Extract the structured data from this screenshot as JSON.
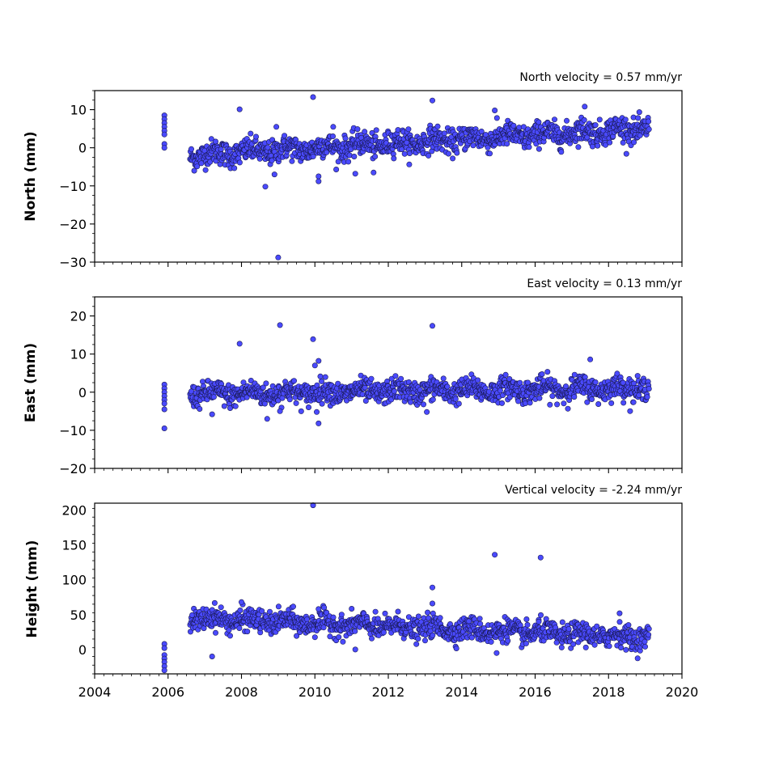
{
  "figure": {
    "background": "#ffffff",
    "marker_fill": "#4a4aff",
    "marker_edge": "#1a1a55"
  },
  "chart_data": [
    {
      "type": "scatter",
      "id": "north",
      "title": "North velocity = 0.57 mm/yr",
      "xlabel": "",
      "ylabel": "North (mm)",
      "xlim": [
        2004,
        2020
      ],
      "ylim": [
        -30,
        15
      ],
      "xticks": [
        2004,
        2006,
        2008,
        2010,
        2012,
        2014,
        2016,
        2018,
        2020
      ],
      "yticks": [
        -30,
        -20,
        -10,
        0,
        10
      ],
      "ytick_labels": [
        "−30",
        "−20",
        "−10",
        "0",
        "10"
      ],
      "show_xtick_labels": false,
      "grid": false,
      "trend": {
        "start_year": 2006.6,
        "end_year": 2019.1,
        "start_value": -2.0,
        "slope_per_year": 0.57,
        "noise": 1.6
      },
      "early_cluster": {
        "x": 2005.9,
        "values": [
          8.5,
          7.5,
          6.5,
          5.5,
          4.5,
          3.5,
          1.0,
          0.0
        ]
      },
      "outliers": [
        {
          "x": 2007.95,
          "y": 10.1
        },
        {
          "x": 2009.95,
          "y": 13.3
        },
        {
          "x": 2013.2,
          "y": 12.4
        },
        {
          "x": 2014.9,
          "y": 9.8
        },
        {
          "x": 2017.35,
          "y": 10.8
        },
        {
          "x": 2009.0,
          "y": -28.8
        },
        {
          "x": 2008.65,
          "y": -10.2
        },
        {
          "x": 2010.1,
          "y": -8.8
        },
        {
          "x": 2010.1,
          "y": -7.5
        },
        {
          "x": 2011.1,
          "y": -6.8
        },
        {
          "x": 2011.6,
          "y": -6.5
        },
        {
          "x": 2008.9,
          "y": -7.0
        },
        {
          "x": 2010.5,
          "y": 5.5
        },
        {
          "x": 2008.95,
          "y": 5.5
        }
      ]
    },
    {
      "type": "scatter",
      "id": "east",
      "title": "East velocity = 0.13 mm/yr",
      "xlabel": "",
      "ylabel": "East (mm)",
      "xlim": [
        2004,
        2020
      ],
      "ylim": [
        -20,
        25
      ],
      "xticks": [
        2004,
        2006,
        2008,
        2010,
        2012,
        2014,
        2016,
        2018,
        2020
      ],
      "yticks": [
        -20,
        -10,
        0,
        10,
        20
      ],
      "ytick_labels": [
        "−20",
        "−10",
        "0",
        "10",
        "20"
      ],
      "show_xtick_labels": false,
      "grid": false,
      "trend": {
        "start_year": 2006.6,
        "end_year": 2019.1,
        "start_value": -0.5,
        "slope_per_year": 0.13,
        "noise": 1.5
      },
      "early_cluster": {
        "x": 2005.9,
        "values": [
          2.0,
          1.0,
          0.0,
          -1.0,
          -2.0,
          -3.0,
          -4.5,
          -9.5
        ]
      },
      "outliers": [
        {
          "x": 2009.05,
          "y": 17.6
        },
        {
          "x": 2009.95,
          "y": 13.9
        },
        {
          "x": 2013.2,
          "y": 17.4
        },
        {
          "x": 2007.95,
          "y": 12.7
        },
        {
          "x": 2010.1,
          "y": 8.2
        },
        {
          "x": 2010.0,
          "y": 7.0
        },
        {
          "x": 2017.5,
          "y": 8.6
        },
        {
          "x": 2010.1,
          "y": -8.2
        },
        {
          "x": 2008.7,
          "y": -7.0
        },
        {
          "x": 2013.05,
          "y": -5.2
        },
        {
          "x": 2007.2,
          "y": -5.8
        },
        {
          "x": 2009.05,
          "y": -5.0
        },
        {
          "x": 2010.05,
          "y": -5.2
        }
      ]
    },
    {
      "type": "scatter",
      "id": "height",
      "title": "Vertical velocity = -2.24 mm/yr",
      "xlabel": "",
      "ylabel": "Height (mm)",
      "xlim": [
        2004,
        2020
      ],
      "ylim": [
        -35,
        210
      ],
      "xticks": [
        2004,
        2006,
        2008,
        2010,
        2012,
        2014,
        2016,
        2018,
        2020
      ],
      "xtick_labels": [
        "2004",
        "2006",
        "2008",
        "2010",
        "2012",
        "2014",
        "2016",
        "2018",
        "2020"
      ],
      "yticks": [
        0,
        50,
        100,
        150,
        200
      ],
      "ytick_labels": [
        "0",
        "50",
        "100",
        "150",
        "200"
      ],
      "show_xtick_labels": true,
      "grid": false,
      "trend": {
        "start_year": 2006.6,
        "end_year": 2019.1,
        "start_value": 45,
        "slope_per_year": -2.24,
        "noise": 8
      },
      "early_cluster": {
        "x": 2005.9,
        "values": [
          8,
          2,
          -8,
          -13,
          -18,
          -24,
          -30
        ]
      },
      "outliers": [
        {
          "x": 2009.95,
          "y": 207
        },
        {
          "x": 2014.9,
          "y": 136
        },
        {
          "x": 2016.15,
          "y": 132
        },
        {
          "x": 2013.2,
          "y": 89
        },
        {
          "x": 2013.2,
          "y": 66
        },
        {
          "x": 2010.1,
          "y": 58
        },
        {
          "x": 2016.1,
          "y": 40
        },
        {
          "x": 2018.3,
          "y": 52
        },
        {
          "x": 2007.2,
          "y": -10
        },
        {
          "x": 2011.1,
          "y": 0
        },
        {
          "x": 2014.95,
          "y": -5
        },
        {
          "x": 2008.0,
          "y": 68
        }
      ]
    }
  ]
}
